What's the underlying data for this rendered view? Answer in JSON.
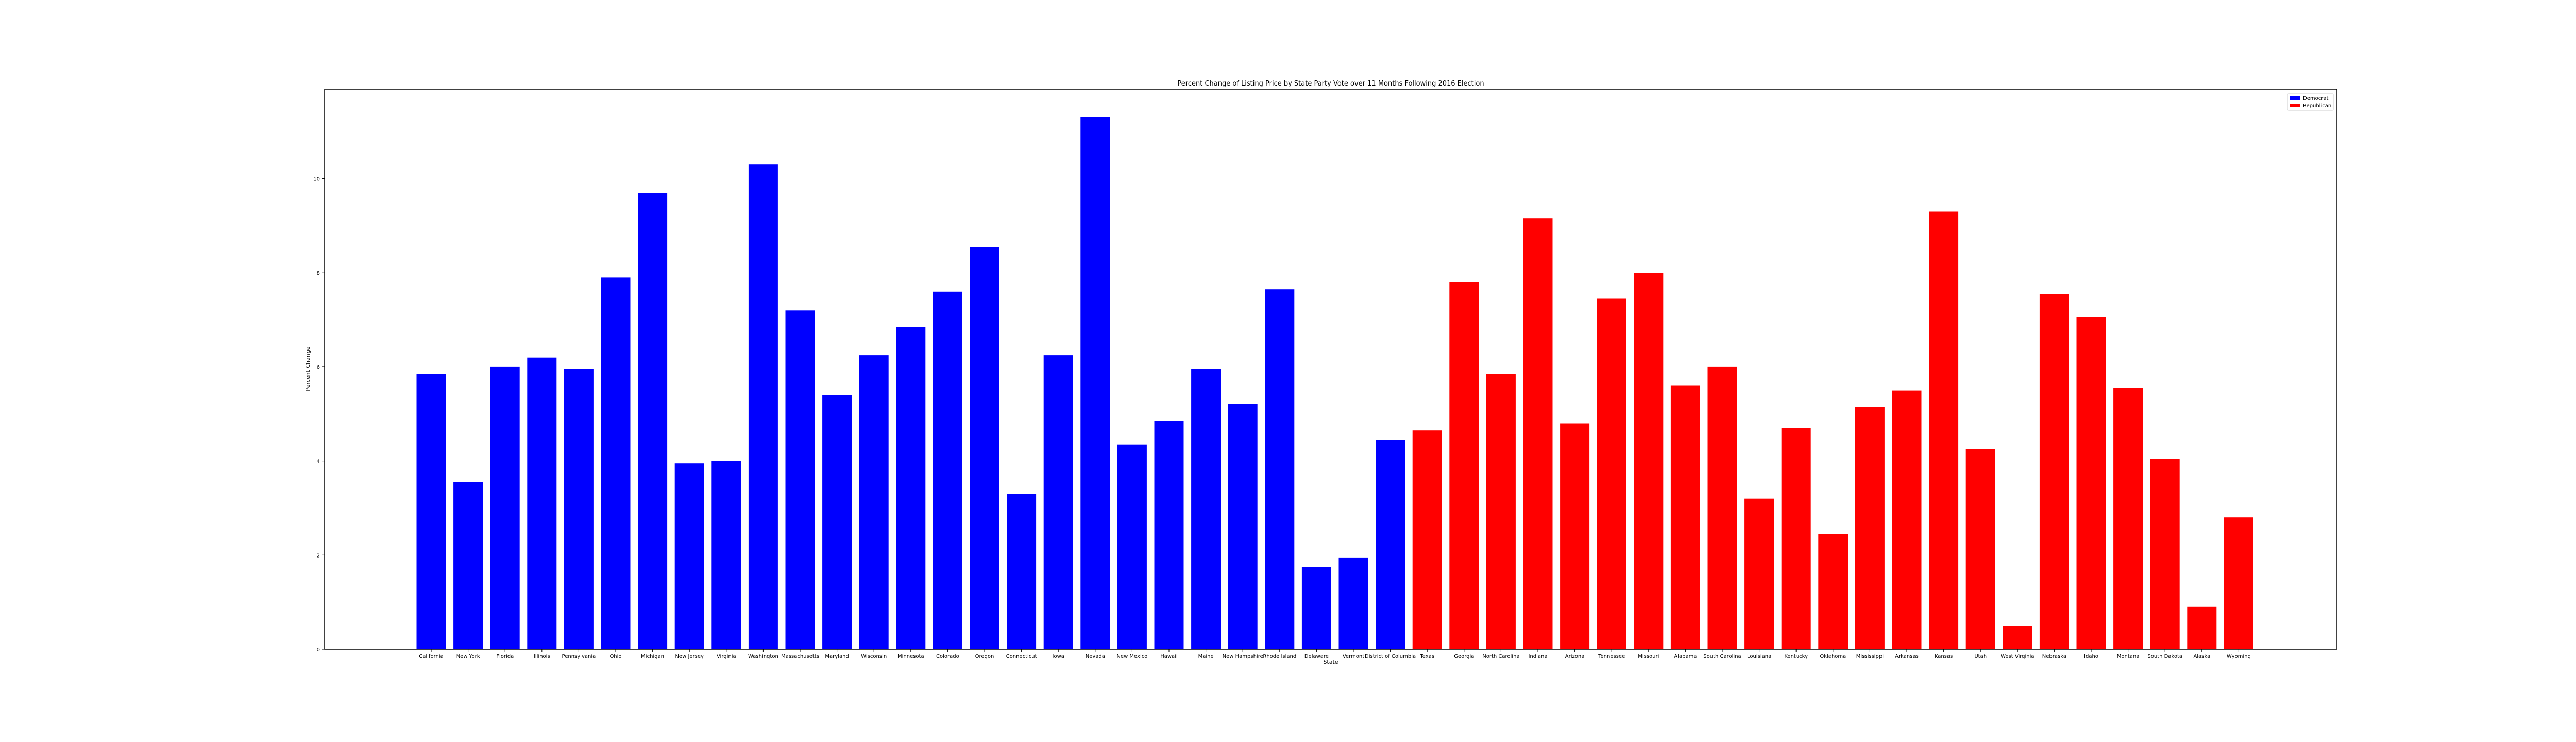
{
  "chart_data": {
    "type": "bar",
    "title": "Percent Change of Listing Price by State Party Vote over 11 Months Following 2016 Election",
    "xlabel": "State",
    "ylabel": "Percent Change",
    "ylim": [
      0,
      11.9
    ],
    "yticks": [
      0,
      2,
      4,
      6,
      8,
      10
    ],
    "grid": false,
    "legend_placement": "top-right",
    "series": [
      {
        "name": "Democrat",
        "color": "#0000ff",
        "categories": [
          "California",
          "New York",
          "Florida",
          "Illinois",
          "Pennsylvania",
          "Ohio",
          "Michigan",
          "New Jersey",
          "Virginia",
          "Washington",
          "Massachusetts",
          "Maryland",
          "Wisconsin",
          "Minnesota",
          "Colorado",
          "Oregon",
          "Connecticut",
          "Iowa",
          "Nevada",
          "New Mexico",
          "Hawaii",
          "Maine",
          "New Hampshire",
          "Rhode Island",
          "Delaware",
          "Vermont",
          "District of Columbia"
        ],
        "values": [
          5.85,
          3.55,
          6.0,
          6.2,
          5.95,
          7.9,
          9.7,
          3.95,
          4.0,
          10.3,
          7.2,
          5.4,
          6.25,
          6.85,
          7.6,
          8.55,
          3.3,
          6.25,
          11.3,
          4.35,
          4.85,
          5.95,
          5.2,
          7.65,
          1.75,
          1.95,
          4.45
        ]
      },
      {
        "name": "Republican",
        "color": "#ff0000",
        "categories": [
          "Texas",
          "Georgia",
          "North Carolina",
          "Indiana",
          "Arizona",
          "Tennessee",
          "Missouri",
          "Alabama",
          "South Carolina",
          "Louisiana",
          "Kentucky",
          "Oklahoma",
          "Mississippi",
          "Arkansas",
          "Kansas",
          "Utah",
          "West Virginia",
          "Nebraska",
          "Idaho",
          "Montana",
          "South Dakota",
          "Alaska",
          "Wyoming"
        ],
        "values": [
          4.65,
          7.8,
          5.85,
          9.15,
          4.8,
          7.45,
          8.0,
          5.6,
          6.0,
          3.2,
          4.7,
          2.45,
          5.15,
          5.5,
          9.3,
          4.25,
          0.5,
          7.55,
          7.05,
          5.55,
          4.05,
          0.9,
          2.8
        ]
      }
    ]
  }
}
